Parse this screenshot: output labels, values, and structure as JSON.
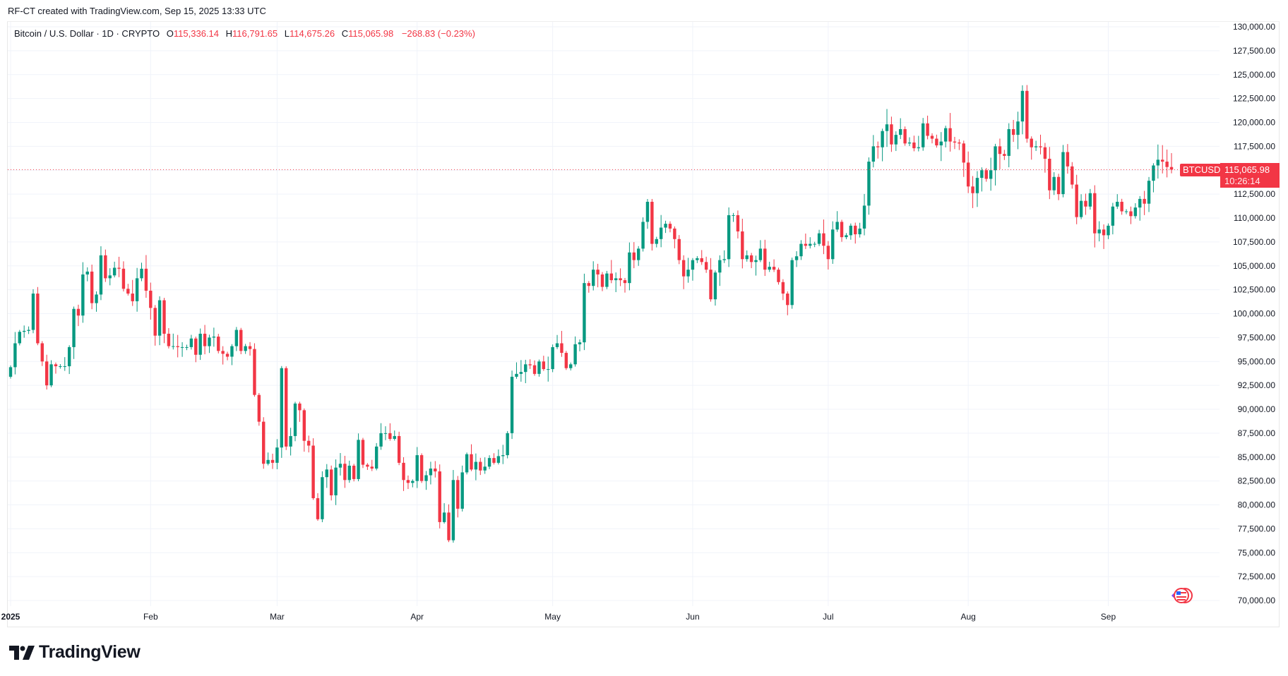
{
  "credit": "RF-CT created with TradingView.com, Sep 15, 2025 13:33 UTC",
  "legend": {
    "symbol": "Bitcoin / U.S. Dollar · 1D · CRYPTO",
    "open_label": "O",
    "open": "115,336.14",
    "high_label": "H",
    "high": "116,791.65",
    "low_label": "L",
    "low": "114,675.26",
    "close_label": "C",
    "close": "115,065.98",
    "change": "−268.83 (−0.23%)"
  },
  "last_price": {
    "ticker": "BTCUSD",
    "price": "115,065.98",
    "countdown": "10:26:14",
    "value": 115065.98
  },
  "logo_text": "TradingView",
  "colors": {
    "up": "#089981",
    "down": "#f23645",
    "grid": "#f0f3fa",
    "text": "#131722"
  },
  "chart_data": {
    "type": "candlestick",
    "title": "",
    "interval": "1D",
    "first_date": "2025-01-01",
    "ylim": [
      70000,
      130000
    ],
    "y_ticks": [
      "130,000.00",
      "127,500.00",
      "125,000.00",
      "122,500.00",
      "120,000.00",
      "117,500.00",
      "115,000.00",
      "112,500.00",
      "110,000.00",
      "107,500.00",
      "105,000.00",
      "102,500.00",
      "100,000.00",
      "97,500.00",
      "95,000.00",
      "92,500.00",
      "90,000.00",
      "87,500.00",
      "85,000.00",
      "82,500.00",
      "80,000.00",
      "77,500.00",
      "75,000.00",
      "72,500.00",
      "70,000.00"
    ],
    "x_ticks": [
      {
        "label": "2025",
        "day": 0
      },
      {
        "label": "Feb",
        "day": 31
      },
      {
        "label": "Mar",
        "day": 59
      },
      {
        "label": "Apr",
        "day": 90
      },
      {
        "label": "May",
        "day": 120
      },
      {
        "label": "Jun",
        "day": 151
      },
      {
        "label": "Jul",
        "day": 181
      },
      {
        "label": "Aug",
        "day": 212
      },
      {
        "label": "Sep",
        "day": 243
      }
    ],
    "grid": true,
    "first_open": 93400,
    "close": [
      94400,
      96900,
      98100,
      98200,
      98300,
      102100,
      96900,
      95000,
      92500,
      94700,
      94500,
      94500,
      94500,
      96500,
      100500,
      99800,
      104100,
      104400,
      101100,
      102000,
      106100,
      103700,
      104000,
      104800,
      104700,
      102600,
      102100,
      101300,
      103700,
      104700,
      102400,
      100600,
      97700,
      101400,
      97900,
      96600,
      96600,
      96500,
      96500,
      96500,
      97400,
      95700,
      97900,
      96600,
      97500,
      97600,
      96100,
      95800,
      95500,
      96600,
      98300,
      96100,
      96600,
      96300,
      91500,
      88700,
      84300,
      84700,
      84400,
      86000,
      94300,
      86100,
      87200,
      90600,
      89900,
      86700,
      86200,
      80700,
      78500,
      82900,
      83700,
      81000,
      83900,
      84300,
      82600,
      84100,
      82700,
      86800,
      84200,
      84000,
      83800,
      86100,
      87500,
      87500,
      86900,
      87200,
      84400,
      82600,
      82300,
      82500,
      85200,
      82500,
      83100,
      83800,
      83500,
      78200,
      79200,
      76300,
      82600,
      79600,
      83400,
      85300,
      83700,
      84500,
      83600,
      84000,
      84900,
      84400,
      85100,
      85200,
      87500,
      93400,
      93700,
      93900,
      94700,
      94600,
      93700,
      95000,
      94200,
      94200,
      96500,
      96900,
      95900,
      94300,
      94700,
      96800,
      97000,
      103200,
      102900,
      104600,
      104100,
      102800,
      104200,
      103500,
      103700,
      103500,
      103200,
      106400,
      105600,
      106800,
      109600,
      111700,
      107300,
      107800,
      109000,
      109400,
      108900,
      107800,
      105600,
      103900,
      104600,
      105600,
      105800,
      105400,
      104600,
      101500,
      104300,
      105600,
      105700,
      110300,
      110300,
      108600,
      105700,
      106100,
      105400,
      105600,
      106800,
      104600,
      104900,
      104600,
      103300,
      102100,
      100900,
      105600,
      106000,
      107300,
      107100,
      107300,
      107300,
      108400,
      107100,
      105700,
      108800,
      109600,
      108000,
      108200,
      109200,
      108300,
      108900,
      111300,
      115900,
      117500,
      117400,
      119100,
      119800,
      117700,
      118700,
      119300,
      117800,
      117900,
      117300,
      117400,
      119900,
      118600,
      118300,
      117600,
      118000,
      119400,
      118000,
      117900,
      117800,
      115800,
      113300,
      112600,
      114200,
      115000,
      114100,
      115000,
      117500,
      116700,
      116500,
      119300,
      118700,
      120100,
      123300,
      118300,
      117400,
      117500,
      117400,
      116200,
      112900,
      114300,
      112500,
      116900,
      115400,
      113500,
      110100,
      111800,
      111200,
      112600,
      108400,
      108800,
      108200,
      109200,
      111200,
      111700,
      110700,
      110700,
      110200,
      111100,
      112000,
      111500,
      113900,
      115500,
      116100,
      115900,
      115336.14,
      115065.98
    ],
    "last_high": 116791.65,
    "last_low": 114675.26
  }
}
